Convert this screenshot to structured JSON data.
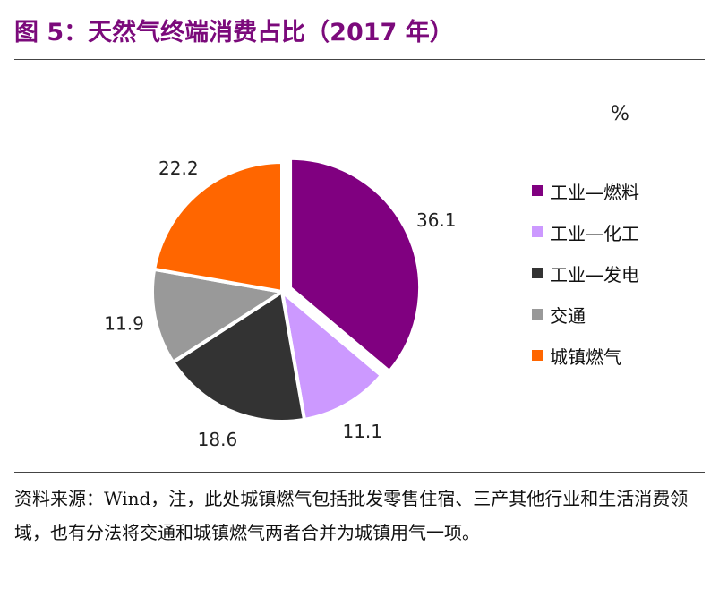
{
  "title": "图 5：天然气终端消费占比（2017 年）",
  "unit": "%",
  "source": "资料来源：Wind，注，此处城镇燃气包括批发零售住宿、三产其他行业和生活消费领域，也有分法将交通和城镇燃气两者合并为城镇用气一项。",
  "chart_data": {
    "type": "pie",
    "labels": [
      "工业—燃料",
      "工业—化工",
      "工业—发电",
      "交通",
      "城镇燃气"
    ],
    "values": [
      36.1,
      11.1,
      18.6,
      11.9,
      22.2
    ],
    "value_labels": [
      "36.1",
      "11.1",
      "18.6",
      "11.9",
      "22.2"
    ],
    "colors": [
      "#800080",
      "#cc99ff",
      "#333333",
      "#999999",
      "#ff6600"
    ],
    "start_angle": "12 o'clock, clockwise",
    "exploded": [
      "工业—燃料"
    ],
    "legend_position": "right"
  }
}
